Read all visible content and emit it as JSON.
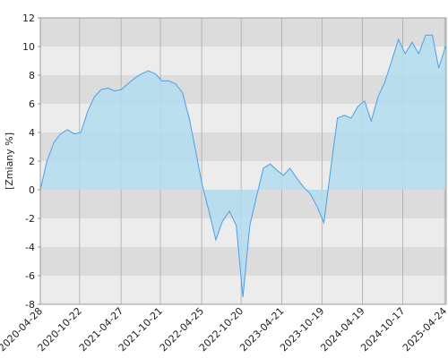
{
  "chart_data": {
    "type": "area",
    "y_label": "[Zmiany %]",
    "x": [
      "2020-04-28",
      "2020-05-28",
      "2020-06-28",
      "2020-07-28",
      "2020-08-28",
      "2020-09-28",
      "2020-10-28",
      "2020-11-28",
      "2020-12-28",
      "2021-01-28",
      "2021-02-28",
      "2021-03-28",
      "2021-04-28",
      "2021-05-28",
      "2021-06-28",
      "2021-07-28",
      "2021-08-28",
      "2021-09-28",
      "2021-10-28",
      "2021-11-28",
      "2021-12-28",
      "2022-01-28",
      "2022-02-28",
      "2022-03-28",
      "2022-04-28",
      "2022-05-28",
      "2022-06-28",
      "2022-07-28",
      "2022-08-28",
      "2022-09-28",
      "2022-10-28",
      "2022-11-28",
      "2022-12-28",
      "2023-01-28",
      "2023-02-28",
      "2023-03-28",
      "2023-04-28",
      "2023-05-28",
      "2023-06-28",
      "2023-07-28",
      "2023-08-28",
      "2023-09-28",
      "2023-10-28",
      "2023-11-28",
      "2023-12-28",
      "2024-01-28",
      "2024-02-28",
      "2024-03-28",
      "2024-04-28",
      "2024-05-28",
      "2024-06-28",
      "2024-07-28",
      "2024-08-28",
      "2024-09-28",
      "2024-10-28",
      "2024-11-28",
      "2024-12-28",
      "2025-01-28",
      "2025-02-28",
      "2025-03-28",
      "2025-04-28"
    ],
    "series": [
      {
        "name": "Zmiany",
        "color": "#4a9fe8",
        "fill": "#b3ddf0",
        "values": [
          0,
          2.0,
          3.3,
          3.9,
          4.2,
          3.9,
          4.0,
          5.5,
          6.5,
          7.0,
          7.1,
          6.9,
          7.0,
          7.4,
          7.8,
          8.1,
          8.3,
          8.1,
          7.6,
          7.6,
          7.4,
          6.8,
          5.0,
          2.8,
          0.3,
          -1.5,
          -3.5,
          -2.2,
          -1.5,
          -2.5,
          -7.5,
          -2.5,
          -0.5,
          1.5,
          1.8,
          1.4,
          1.0,
          1.5,
          0.8,
          0.2,
          -0.3,
          -1.2,
          -2.3,
          1.5,
          5.0,
          5.2,
          5.0,
          5.8,
          6.2,
          4.8,
          6.5,
          7.5,
          9.0,
          10.5,
          9.5,
          10.3,
          9.5,
          10.8,
          10.8,
          8.5,
          10.0
        ]
      }
    ],
    "xlim": [
      "2020-04-28",
      "2025-05-01"
    ],
    "xticks": [
      "2020-04-28",
      "2020-10-22",
      "2021-04-27",
      "2021-10-21",
      "2022-04-25",
      "2022-10-20",
      "2023-04-21",
      "2023-10-19",
      "2024-04-19",
      "2024-10-17",
      "2025-04-24"
    ],
    "ylim": [
      -8,
      12
    ],
    "yticks": [
      -8,
      -6,
      -4,
      -2,
      0,
      2,
      4,
      6,
      8,
      10,
      12
    ],
    "grid": true,
    "band_colors": [
      "#ececec",
      "#dcdcdc"
    ]
  }
}
